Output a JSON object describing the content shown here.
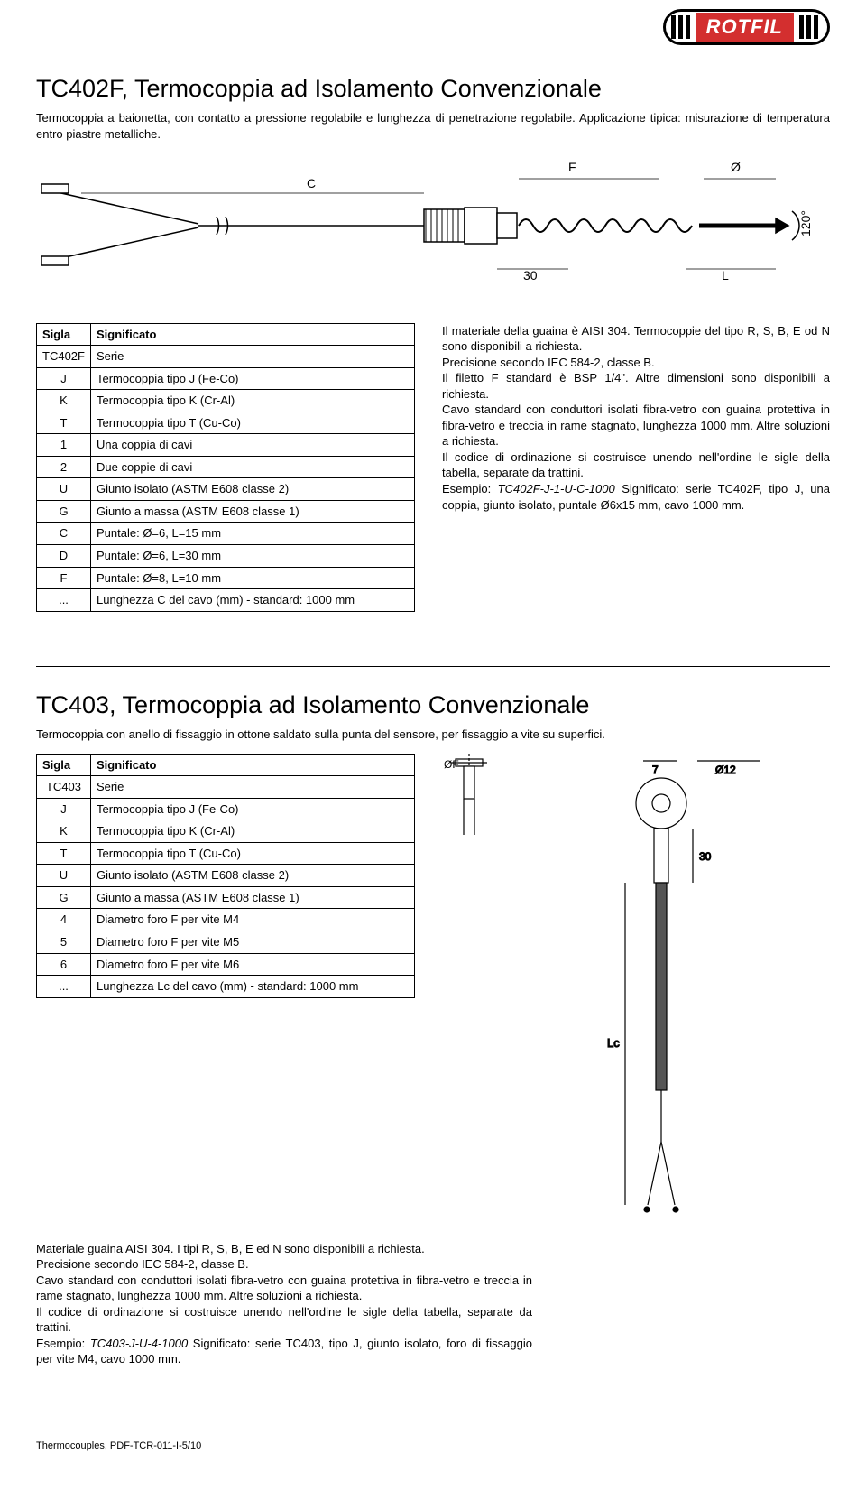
{
  "logo": {
    "text": "ROTFIL"
  },
  "section1": {
    "title": "TC402F, Termocoppia ad Isolamento Convenzionale",
    "intro": "Termocoppia a baionetta, con contatto a pressione regolabile e lunghezza di penetrazione regolabile. Applicazione tipica: misurazione di temperatura entro piastre metalliche.",
    "figure": {
      "labels": {
        "C": "C",
        "F": "F",
        "O": "Ø",
        "thirty": "30",
        "L": "L",
        "angle": "120°"
      },
      "colors": {
        "line": "#000000",
        "bg": "#ffffff"
      }
    },
    "table": {
      "head": {
        "c1": "Sigla",
        "c2": "Significato"
      },
      "rows": [
        {
          "k": "TC402F",
          "v": "Serie"
        },
        {
          "k": "J",
          "v": "Termocoppia tipo J (Fe-Co)"
        },
        {
          "k": "K",
          "v": "Termocoppia tipo K (Cr-Al)"
        },
        {
          "k": "T",
          "v": "Termocoppia tipo T (Cu-Co)"
        },
        {
          "k": "1",
          "v": "Una coppia di cavi"
        },
        {
          "k": "2",
          "v": "Due coppie di cavi"
        },
        {
          "k": "U",
          "v": "Giunto isolato (ASTM E608 classe 2)"
        },
        {
          "k": "G",
          "v": "Giunto a massa (ASTM E608 classe 1)"
        },
        {
          "k": "C",
          "v": "Puntale: Ø=6, L=15 mm"
        },
        {
          "k": "D",
          "v": "Puntale: Ø=6, L=30 mm"
        },
        {
          "k": "F",
          "v": "Puntale: Ø=8, L=10 mm"
        },
        {
          "k": "...",
          "v": "Lunghezza C del cavo (mm)  -  standard: 1000 mm"
        }
      ]
    },
    "para": {
      "p1a": "Il materiale della guaina è AISI 304. Termocoppie del tipo R, S, B, E od N sono disponibili a richiesta.",
      "p1b": "Precisione secondo IEC 584-2, classe B.",
      "p1c": "Il filetto F standard è BSP 1/4\". Altre dimensioni sono disponibili a richiesta.",
      "p1d": "Cavo standard con conduttori isolati fibra-vetro con guaina protettiva in fibra-vetro e treccia in rame stagnato, lunghezza 1000 mm. Altre soluzioni a richiesta.",
      "p1e": "Il codice di ordinazione si costruisce unendo nell'ordine le sigle della tabella, separate da trattini.",
      "p1f_pre": "Esempio: ",
      "p1f_em": "TC402F-J-1-U-C-1000",
      "p1f_post": "        Significato: serie TC402F, tipo J, una coppia, giunto isolato, puntale Ø6x15 mm, cavo 1000 mm."
    }
  },
  "section2": {
    "title": "TC403, Termocoppia ad Isolamento Convenzionale",
    "intro": "Termocoppia con anello di fissaggio in ottone saldato sulla punta del sensore, per fissaggio a vite su superfici.",
    "table": {
      "head": {
        "c1": "Sigla",
        "c2": "Significato"
      },
      "rows": [
        {
          "k": "TC403",
          "v": "Serie"
        },
        {
          "k": "J",
          "v": "Termocoppia tipo J (Fe-Co)"
        },
        {
          "k": "K",
          "v": "Termocoppia tipo K (Cr-Al)"
        },
        {
          "k": "T",
          "v": "Termocoppia tipo T (Cu-Co)"
        },
        {
          "k": "U",
          "v": "Giunto isolato (ASTM E608 classe 2)"
        },
        {
          "k": "G",
          "v": "Giunto a massa (ASTM E608 classe 1)"
        },
        {
          "k": "4",
          "v": "Diametro foro F per vite M4"
        },
        {
          "k": "5",
          "v": "Diametro foro F per vite M5"
        },
        {
          "k": "6",
          "v": "Diametro foro F per vite M6"
        },
        {
          "k": "...",
          "v": "Lunghezza Lc del cavo (mm)  -  standard: 1000 mm"
        }
      ]
    },
    "figure": {
      "labels": {
        "OF": "ØF",
        "seven": "7",
        "O12": "Ø12",
        "thirty": "30",
        "Lc": "Lc"
      },
      "colors": {
        "line": "#000000",
        "fill": "#555555"
      }
    },
    "para": {
      "p1": "Materiale guaina AISI 304. I tipi R, S, B, E ed N sono disponibili a richiesta.",
      "p2": "Precisione secondo IEC 584-2, classe B.",
      "p3": "Cavo standard con conduttori isolati fibra-vetro con guaina protettiva in fibra-vetro e treccia in rame stagnato, lunghezza 1000 mm. Altre soluzioni a richiesta.",
      "p4": "Il codice di ordinazione si costruisce unendo nell'ordine le sigle della tabella, separate da trattini.",
      "p5_pre": "Esempio: ",
      "p5_em": "TC403-J-U-4-1000",
      "p5_post": "       Significato: serie TC403, tipo J, giunto isolato, foro di fissaggio per vite M4, cavo 1000 mm."
    }
  },
  "footer": "Thermocouples, PDF-TCR-011-I-5/10"
}
